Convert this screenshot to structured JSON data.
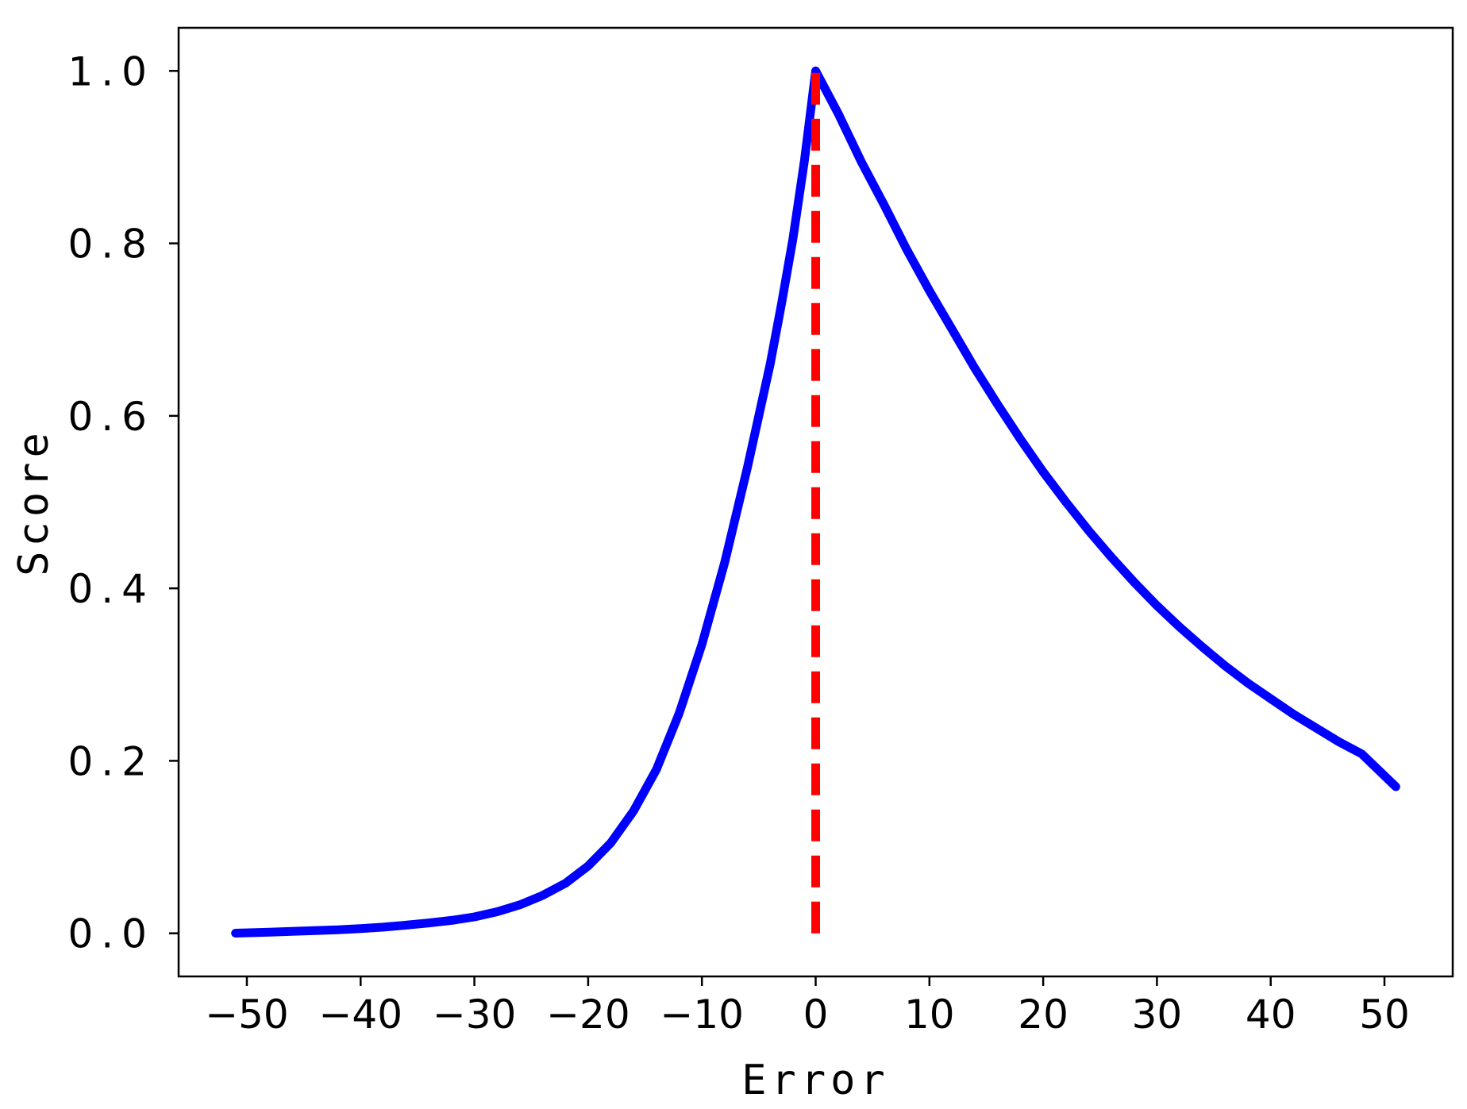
{
  "chart_data": {
    "type": "line",
    "xlabel": "Error",
    "ylabel": "Score",
    "xlim": [
      -56,
      56
    ],
    "ylim": [
      -0.05,
      1.05
    ],
    "xticks": [
      -50,
      -40,
      -30,
      -20,
      -10,
      0,
      10,
      20,
      30,
      40,
      50
    ],
    "xtick_labels": [
      "−50",
      "−40",
      "−30",
      "−20",
      "−10",
      "0",
      "10",
      "20",
      "30",
      "40",
      "50"
    ],
    "yticks": [
      0.0,
      0.2,
      0.4,
      0.6,
      0.8,
      1.0
    ],
    "ytick_labels": [
      "0.0",
      "0.2",
      "0.4",
      "0.6",
      "0.8",
      "1.0"
    ],
    "grid": false,
    "series": [
      {
        "style": "solid",
        "color": "#0000ff",
        "x": [
          -51,
          -48,
          -45,
          -42,
          -40,
          -38,
          -36,
          -34,
          -32,
          -30,
          -28,
          -26,
          -24,
          -22,
          -20,
          -18,
          -16,
          -14,
          -12,
          -10,
          -8,
          -6,
          -4,
          -3,
          -2,
          -1,
          0,
          2,
          4,
          6,
          8,
          10,
          12,
          14,
          16,
          18,
          20,
          22,
          24,
          26,
          28,
          30,
          32,
          34,
          36,
          38,
          40,
          42,
          44,
          46,
          48,
          51
        ],
        "y": [
          0.0002,
          0.0013,
          0.0027,
          0.004,
          0.0055,
          0.0072,
          0.0095,
          0.012,
          0.015,
          0.019,
          0.025,
          0.033,
          0.044,
          0.058,
          0.078,
          0.105,
          0.142,
          0.19,
          0.255,
          0.335,
          0.43,
          0.54,
          0.66,
          0.73,
          0.805,
          0.895,
          1.0,
          0.95,
          0.895,
          0.845,
          0.793,
          0.745,
          0.7,
          0.655,
          0.613,
          0.573,
          0.535,
          0.5,
          0.467,
          0.436,
          0.407,
          0.38,
          0.355,
          0.332,
          0.31,
          0.29,
          0.272,
          0.254,
          0.238,
          0.222,
          0.208,
          0.17
        ]
      },
      {
        "style": "dashed",
        "color": "#ff0000",
        "x": [
          0,
          0
        ],
        "y": [
          0.0,
          1.0
        ]
      }
    ]
  }
}
